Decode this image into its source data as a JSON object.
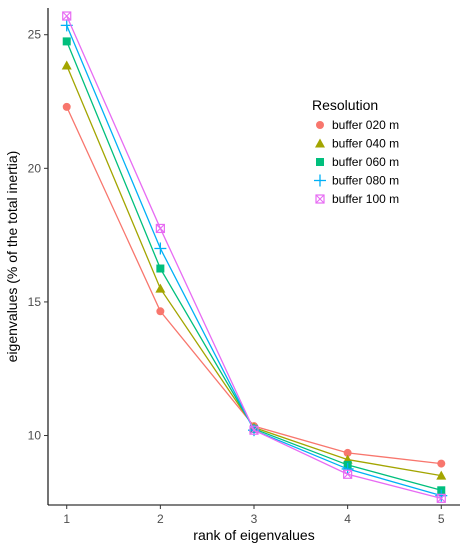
{
  "chart_data": {
    "type": "line",
    "xlabel": "rank of eigenvalues",
    "ylabel": "eigenvalues (% of the total inertia)",
    "x": [
      1,
      2,
      3,
      4,
      5
    ],
    "xlim": [
      0.8,
      5.2
    ],
    "ylim": [
      7.4,
      26.0
    ],
    "x_ticks": [
      1,
      2,
      3,
      4,
      5
    ],
    "y_ticks": [
      10,
      15,
      20,
      25
    ],
    "grid": false,
    "legend_title": "Resolution",
    "legend_position": "right",
    "series": [
      {
        "name": "buffer 020 m",
        "color": "#F8766D",
        "marker": "circle",
        "values": [
          22.3,
          14.65,
          10.35,
          9.35,
          8.95
        ]
      },
      {
        "name": "buffer 040 m",
        "color": "#A3A500",
        "marker": "triangle",
        "values": [
          23.85,
          15.5,
          10.3,
          9.1,
          8.5
        ]
      },
      {
        "name": "buffer 060 m",
        "color": "#00BF7D",
        "marker": "square",
        "values": [
          24.75,
          16.25,
          10.25,
          8.9,
          7.95
        ]
      },
      {
        "name": "buffer 080 m",
        "color": "#00B0F6",
        "marker": "plus",
        "values": [
          25.35,
          17.0,
          10.2,
          8.75,
          7.75
        ]
      },
      {
        "name": "buffer 100 m",
        "color": "#E76BF3",
        "marker": "square-cross",
        "values": [
          25.7,
          17.75,
          10.2,
          8.55,
          7.65
        ]
      }
    ]
  }
}
